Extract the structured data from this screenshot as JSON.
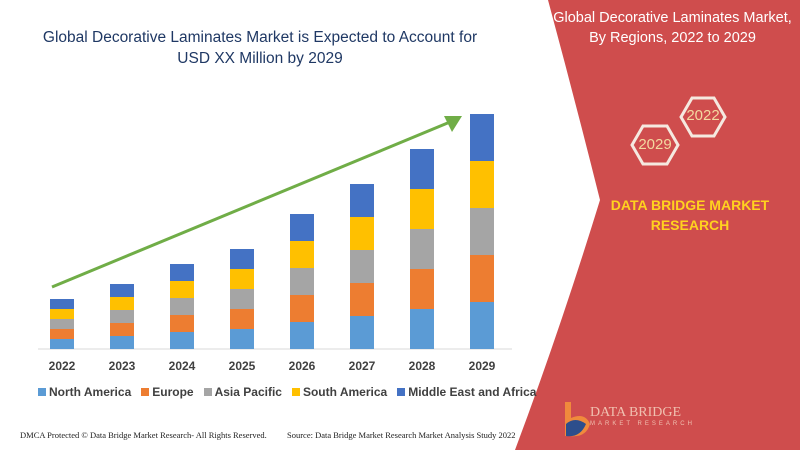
{
  "header": {
    "title_line1": "Global Decorative Laminates Market is Expected to Account for",
    "title_line2": "USD XX Million by 2029"
  },
  "side_panel": {
    "title_line1": "Global Decorative Laminates Market,",
    "title_line2": "By Regions, 2022 to 2029",
    "hex_years": [
      "2022",
      "2029"
    ],
    "brand_line1": "DATA BRIDGE MARKET",
    "brand_line2": "RESEARCH",
    "color": "#cf4d4d"
  },
  "logo": {
    "name": "DATA BRIDGE",
    "tagline": "MARKET RESEARCH"
  },
  "footer": {
    "copyright": "DMCA Protected © Data Bridge Market Research- All Rights Reserved.",
    "source": "Source: Data Bridge Market Research Market Analysis Study 2022"
  },
  "chart_data": {
    "type": "bar",
    "stacked": true,
    "categories": [
      "2022",
      "2023",
      "2024",
      "2025",
      "2026",
      "2027",
      "2028",
      "2029"
    ],
    "series": [
      {
        "name": "North America",
        "color": "#5b9bd5",
        "values": [
          10,
          13,
          17,
          20,
          27,
          33,
          40,
          47
        ]
      },
      {
        "name": "Europe",
        "color": "#ed7d31",
        "values": [
          10,
          13,
          17,
          20,
          27,
          33,
          40,
          47
        ]
      },
      {
        "name": "Asia Pacific",
        "color": "#a5a5a5",
        "values": [
          10,
          13,
          17,
          20,
          27,
          33,
          40,
          47
        ]
      },
      {
        "name": "South America",
        "color": "#ffc000",
        "values": [
          10,
          13,
          17,
          20,
          27,
          33,
          40,
          47
        ]
      },
      {
        "name": "Middle East and Africa",
        "color": "#4472c4",
        "values": [
          10,
          13,
          17,
          20,
          27,
          33,
          40,
          47
        ]
      }
    ],
    "legend": "bottom",
    "grid": false,
    "trend_arrow_color": "#70ad47"
  }
}
